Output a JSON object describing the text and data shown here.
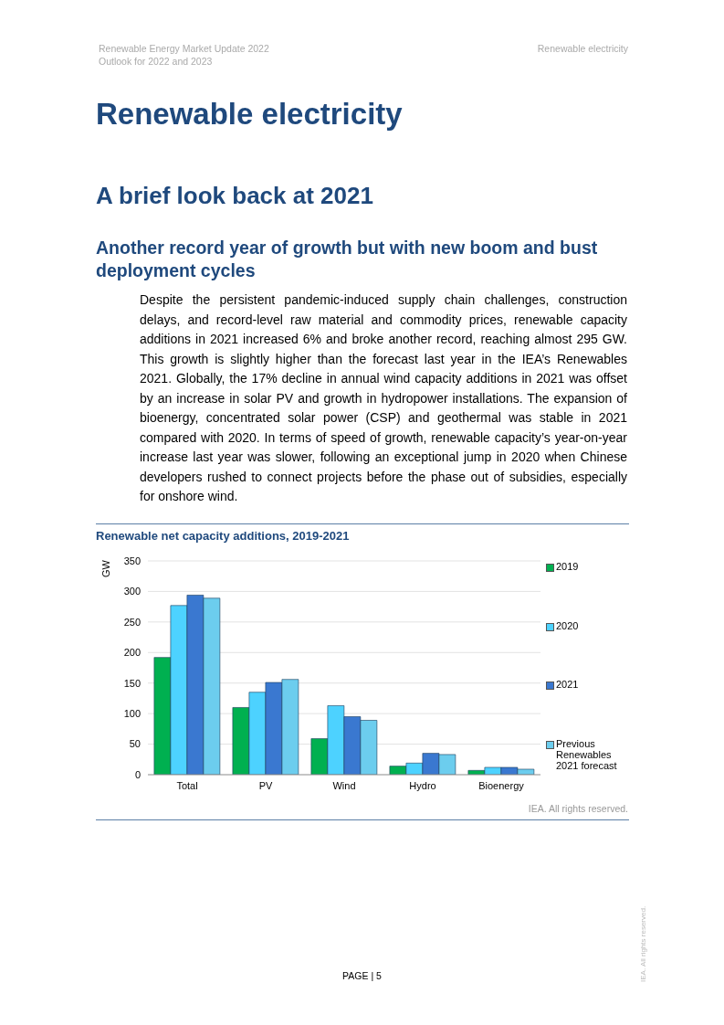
{
  "chart_data": {
    "type": "bar",
    "title": "Renewable net capacity additions, 2019-2021",
    "ylabel": "GW",
    "categories": [
      "Total",
      "PV",
      "Wind",
      "Hydro",
      "Bioenergy"
    ],
    "series": [
      {
        "name": "2019",
        "color": "#00b050",
        "values": [
          192,
          110,
          59,
          14,
          7
        ]
      },
      {
        "name": "2020",
        "color": "#4dd2ff",
        "values": [
          277,
          135,
          113,
          19,
          12
        ]
      },
      {
        "name": "2021",
        "color": "#3a78d0",
        "values": [
          294,
          151,
          95,
          35,
          12
        ]
      },
      {
        "name": "Previous Renewables 2021 forecast",
        "color": "#6ccdee",
        "values": [
          289,
          156,
          89,
          33,
          9
        ]
      }
    ],
    "ylim": [
      0,
      350
    ],
    "yticks": [
      0,
      50,
      100,
      150,
      200,
      250,
      300,
      350
    ],
    "grid": "y",
    "legend": "right",
    "annotations": [
      "Renewable Energy Market Update 2022",
      "Outlook for 2022 and 2023",
      "Renewable electricity",
      "Renewable electricity",
      "A brief look back at 2021",
      "Another record year of growth but with new boom and bust deployment cycles",
      "Despite the persistent pandemic-induced supply chain challenges, construction delays, and record-level raw material and commodity prices, renewable capacity additions in 2021 increased 6% and broke another record, reaching almost 295 GW. This growth is slightly higher than the forecast last year in the IEA’s Renewables 2021. Globally, the 17% decline in annual wind capacity additions in 2021 was offset by an increase in solar PV and growth in hydropower installations. The expansion of bioenergy, concentrated solar power (CSP) and geothermal was stable in 2021 compared with 2020. In terms of speed of growth, renewable capacity’s year-on-year increase last year was slower, following an exceptional jump in 2020 when Chinese developers rushed to connect projects before the phase out of subsidies, especially for onshore wind.",
      "IEA. All rights reserved.",
      "PAGE | 5",
      "IEA. All rights reserved."
    ]
  }
}
